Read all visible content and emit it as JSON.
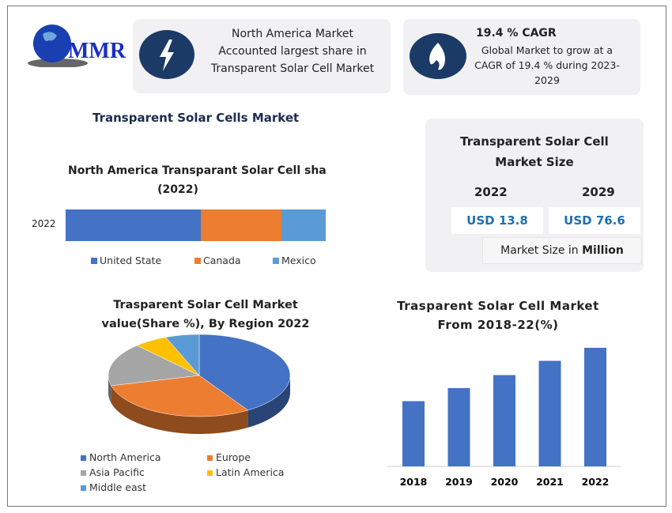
{
  "logo": {
    "text": "MMR"
  },
  "card1": {
    "icon": "lightning-icon",
    "lines": [
      "North America Market",
      "Accounted largest share in",
      "Transparent Solar Cell Market"
    ]
  },
  "card2": {
    "icon": "flame-icon",
    "title": "19.4 % CAGR",
    "lines": [
      "Global Market to grow at a",
      "CAGR of 19.4 % during 2023-",
      "2029"
    ]
  },
  "heading": "Transparent Solar Cells Market",
  "size_card": {
    "title_lines": [
      "Transparent Solar Cell",
      "Market Size"
    ],
    "years": [
      "2022",
      "2029"
    ],
    "values": [
      "USD 13.8",
      "USD 76.6"
    ],
    "unit_prefix": "Market Size in ",
    "unit_bold": "Million"
  },
  "colors": {
    "blue": "#4472c4",
    "orange": "#ed7d31",
    "gray": "#a5a5a5",
    "yellow": "#ffc000",
    "lightblue": "#5b9bd5",
    "navy": "#1c3a66",
    "accent_text": "#1f6fb2"
  },
  "chart_data": [
    {
      "type": "bar",
      "orientation": "horizontal-stacked",
      "title_lines": [
        "North America Transparant Solar Cell sha",
        "(2022)"
      ],
      "categories": [
        "2022"
      ],
      "series": [
        {
          "name": "United State",
          "values": [
            52
          ],
          "color": "#4472c4"
        },
        {
          "name": "Canada",
          "values": [
            31
          ],
          "color": "#ed7d31"
        },
        {
          "name": "Mexico",
          "values": [
            17
          ],
          "color": "#5b9bd5"
        }
      ],
      "legend": "bottom"
    },
    {
      "type": "pie",
      "title_lines": [
        "Trasparent Solar Cell Market",
        "value(Share %), By Region 2022"
      ],
      "labels": [
        "North America",
        "Europe",
        "Asia Pacific",
        "Latin America",
        "Middle east"
      ],
      "values": [
        41,
        30,
        17,
        6,
        6
      ],
      "colors": [
        "#4472c4",
        "#ed7d31",
        "#a5a5a5",
        "#ffc000",
        "#5b9bd5"
      ],
      "legend": "bottom"
    },
    {
      "type": "bar",
      "title_lines": [
        "Trasparent Solar Cell Market",
        "From 2018-22(%)"
      ],
      "categories": [
        "2018",
        "2019",
        "2020",
        "2021",
        "2022"
      ],
      "values": [
        55,
        66,
        77,
        89,
        100
      ],
      "color": "#4472c4"
    }
  ]
}
